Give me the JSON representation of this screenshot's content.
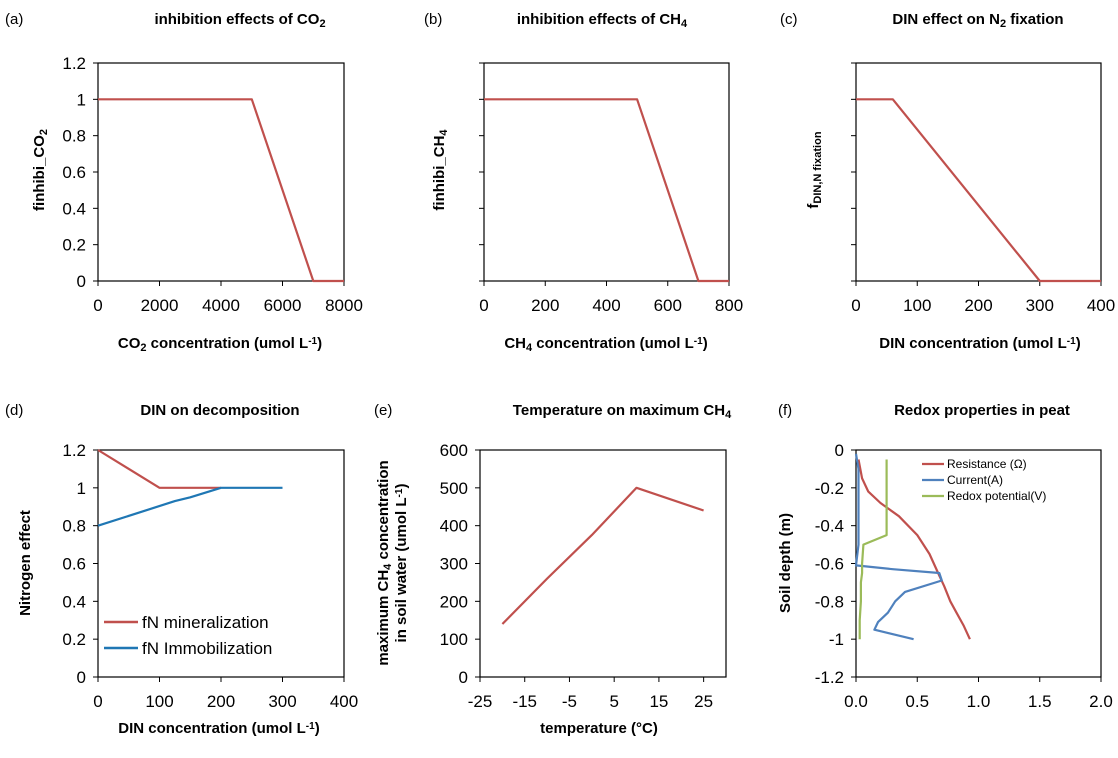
{
  "chart_data": [
    {
      "id": "a",
      "panel_label": "(a)",
      "type": "line",
      "title": "inhibition effects of CO",
      "title_sub": "2",
      "title_tail": "",
      "xlabel": "CO",
      "xlabel_sub": "2",
      "xlabel_tail": " concentration  (umol L",
      "xlabel_sup": "-1",
      "xlabel_end": ")",
      "ylabel": "finhibi_CO",
      "ylabel_sub": "2",
      "xlim": [
        0,
        8000
      ],
      "ylim": [
        0,
        1.2
      ],
      "xticks": [
        "0",
        "2000",
        "4000",
        "6000",
        "8000"
      ],
      "yticks": [
        "0",
        "0.2",
        "0.4",
        "0.6",
        "0.8",
        "1",
        "1.2"
      ],
      "show_ytick_labels": true,
      "show_xtick_labels": true,
      "series": [
        {
          "color": "#c0504d",
          "x": [
            0,
            5000,
            7000,
            8000
          ],
          "y": [
            1,
            1,
            0,
            0
          ]
        }
      ]
    },
    {
      "id": "b",
      "panel_label": "(b)",
      "type": "line",
      "title": "inhibition effects of CH",
      "title_sub": "4",
      "title_tail": "",
      "xlabel": "CH",
      "xlabel_sub": "4",
      "xlabel_tail": " concentration  (umol L",
      "xlabel_sup": "-1",
      "xlabel_end": ")",
      "ylabel": "finhibi_CH",
      "ylabel_sub": "4",
      "xlim": [
        0,
        800
      ],
      "ylim": [
        0,
        1.2
      ],
      "xticks": [
        "0",
        "200",
        "400",
        "600",
        "800"
      ],
      "yticks": [
        "",
        "",
        "",
        "",
        "",
        "",
        ""
      ],
      "show_ytick_labels": false,
      "show_xtick_labels": true,
      "series": [
        {
          "color": "#c0504d",
          "x": [
            0,
            500,
            700,
            800
          ],
          "y": [
            1,
            1,
            0,
            0
          ]
        }
      ]
    },
    {
      "id": "c",
      "panel_label": "(c)",
      "type": "line",
      "title": "DIN effect on N",
      "title_sub": "2",
      "title_tail": " fixation",
      "xlabel": "DIN concentration  (umol L",
      "xlabel_sub": "",
      "xlabel_tail": "",
      "xlabel_sup": "-1",
      "xlabel_end": ")",
      "ylabel": "f",
      "ylabel_sub": "DIN,N fixation",
      "xlim": [
        0,
        400
      ],
      "ylim": [
        0,
        1.2
      ],
      "xticks": [
        "0",
        "100",
        "200",
        "300",
        "400"
      ],
      "yticks": [
        "",
        "",
        "",
        "",
        "",
        "",
        ""
      ],
      "show_ytick_labels": false,
      "show_xtick_labels": true,
      "series": [
        {
          "color": "#c0504d",
          "x": [
            0,
            60,
            300,
            400
          ],
          "y": [
            1,
            1,
            0,
            0
          ]
        }
      ]
    },
    {
      "id": "d",
      "panel_label": "(d)",
      "type": "line",
      "title": "DIN  on decomposition",
      "title_sub": "",
      "title_tail": "",
      "xlabel": "DIN concentration (umol L",
      "xlabel_sub": "",
      "xlabel_tail": "",
      "xlabel_sup": "-1",
      "xlabel_end": ")",
      "ylabel": "Nitrogen effect",
      "ylabel_sub": "",
      "xlim": [
        0,
        400
      ],
      "ylim": [
        0,
        1.2
      ],
      "xticks": [
        "0",
        "100",
        "200",
        "300",
        "400"
      ],
      "yticks": [
        "0",
        "0.2",
        "0.4",
        "0.6",
        "0.8",
        "1",
        "1.2"
      ],
      "show_ytick_labels": true,
      "show_xtick_labels": true,
      "legend": "lower-left",
      "series": [
        {
          "name": "fN mineralization",
          "color": "#c0504d",
          "x": [
            0,
            100,
            200
          ],
          "y": [
            1.2,
            1,
            1
          ]
        },
        {
          "name": "fN Immobilization",
          "color": "#1f77b4",
          "x": [
            0,
            125,
            150,
            200,
            300
          ],
          "y": [
            0.8,
            0.93,
            0.95,
            1,
            1
          ]
        }
      ]
    },
    {
      "id": "e",
      "panel_label": "(e)",
      "type": "line",
      "title": "Temperature on maximum CH",
      "title_sub": "4",
      "title_tail": "",
      "xlabel": "temperature (°C)",
      "xlabel_sub": "",
      "xlabel_tail": "",
      "xlabel_sup": "",
      "xlabel_end": "",
      "ylabel_line1": "maximum CH",
      "ylabel_line1_sub": "4",
      "ylabel_line1_tail": " concentration",
      "ylabel_line2": "in soil water  (umol L",
      "ylabel_line2_sup": "-1",
      "ylabel_line2_end": ")",
      "xlim": [
        -25,
        30
      ],
      "ylim": [
        0,
        600
      ],
      "xticks": [
        "-25",
        "-15",
        "-5",
        "5",
        "15",
        "25"
      ],
      "xtick_values": [
        -25,
        -15,
        -5,
        5,
        15,
        25
      ],
      "yticks": [
        "0",
        "100",
        "200",
        "300",
        "400",
        "500",
        "600"
      ],
      "show_ytick_labels": true,
      "show_xtick_labels": true,
      "series": [
        {
          "color": "#c0504d",
          "x": [
            -20,
            -10,
            0,
            10,
            25
          ],
          "y": [
            140,
            260,
            375,
            500,
            440
          ]
        }
      ]
    },
    {
      "id": "f",
      "panel_label": "(f)",
      "type": "line",
      "title": "Redox properties in peat",
      "title_sub": "",
      "title_tail": "",
      "xlabel": "",
      "xlabel_sub": "",
      "xlabel_tail": "",
      "xlabel_sup": "",
      "xlabel_end": "",
      "ylabel": "Soil depth (m)",
      "ylabel_sub": "",
      "xlim": [
        0,
        2
      ],
      "ylim": [
        -1.2,
        0
      ],
      "xticks": [
        "0.0",
        "0.5",
        "1.0",
        "1.5",
        "2.0"
      ],
      "yticks": [
        "-1.2",
        "-1",
        "-0.8",
        "-0.6",
        "-0.4",
        "-0.2",
        "0"
      ],
      "show_ytick_labels": true,
      "show_xtick_labels": true,
      "legend": "top-right",
      "series": [
        {
          "name": "Resistance (Ω)",
          "color": "#c0504d",
          "x": [
            0.02,
            0.05,
            0.1,
            0.2,
            0.35,
            0.5,
            0.6,
            0.67,
            0.72,
            0.77,
            0.82,
            0.88,
            0.93
          ],
          "y": [
            -0.05,
            -0.15,
            -0.22,
            -0.28,
            -0.35,
            -0.45,
            -0.55,
            -0.65,
            -0.72,
            -0.8,
            -0.86,
            -0.93,
            -1.0
          ]
        },
        {
          "name": "Current(A)",
          "color": "#4f81bd",
          "x": [
            0.0,
            0.02,
            0.02,
            0.02,
            0.02,
            0.02,
            0.0,
            0.3,
            0.68,
            0.7,
            0.4,
            0.32,
            0.26,
            0.18,
            0.15,
            0.47
          ],
          "y": [
            -0.02,
            -0.1,
            -0.2,
            -0.3,
            -0.4,
            -0.5,
            -0.61,
            -0.63,
            -0.65,
            -0.69,
            -0.75,
            -0.8,
            -0.86,
            -0.91,
            -0.95,
            -1.0
          ]
        },
        {
          "name": "Redox potential(V)",
          "color": "#9bbb59",
          "x": [
            0.25,
            0.25,
            0.25,
            0.25,
            0.25,
            0.06,
            0.05,
            0.05,
            0.04,
            0.04,
            0.03,
            0.03,
            0.03
          ],
          "y": [
            -0.05,
            -0.15,
            -0.25,
            -0.35,
            -0.45,
            -0.5,
            -0.6,
            -0.65,
            -0.7,
            -0.8,
            -0.9,
            -0.95,
            -1.0
          ]
        }
      ]
    }
  ]
}
